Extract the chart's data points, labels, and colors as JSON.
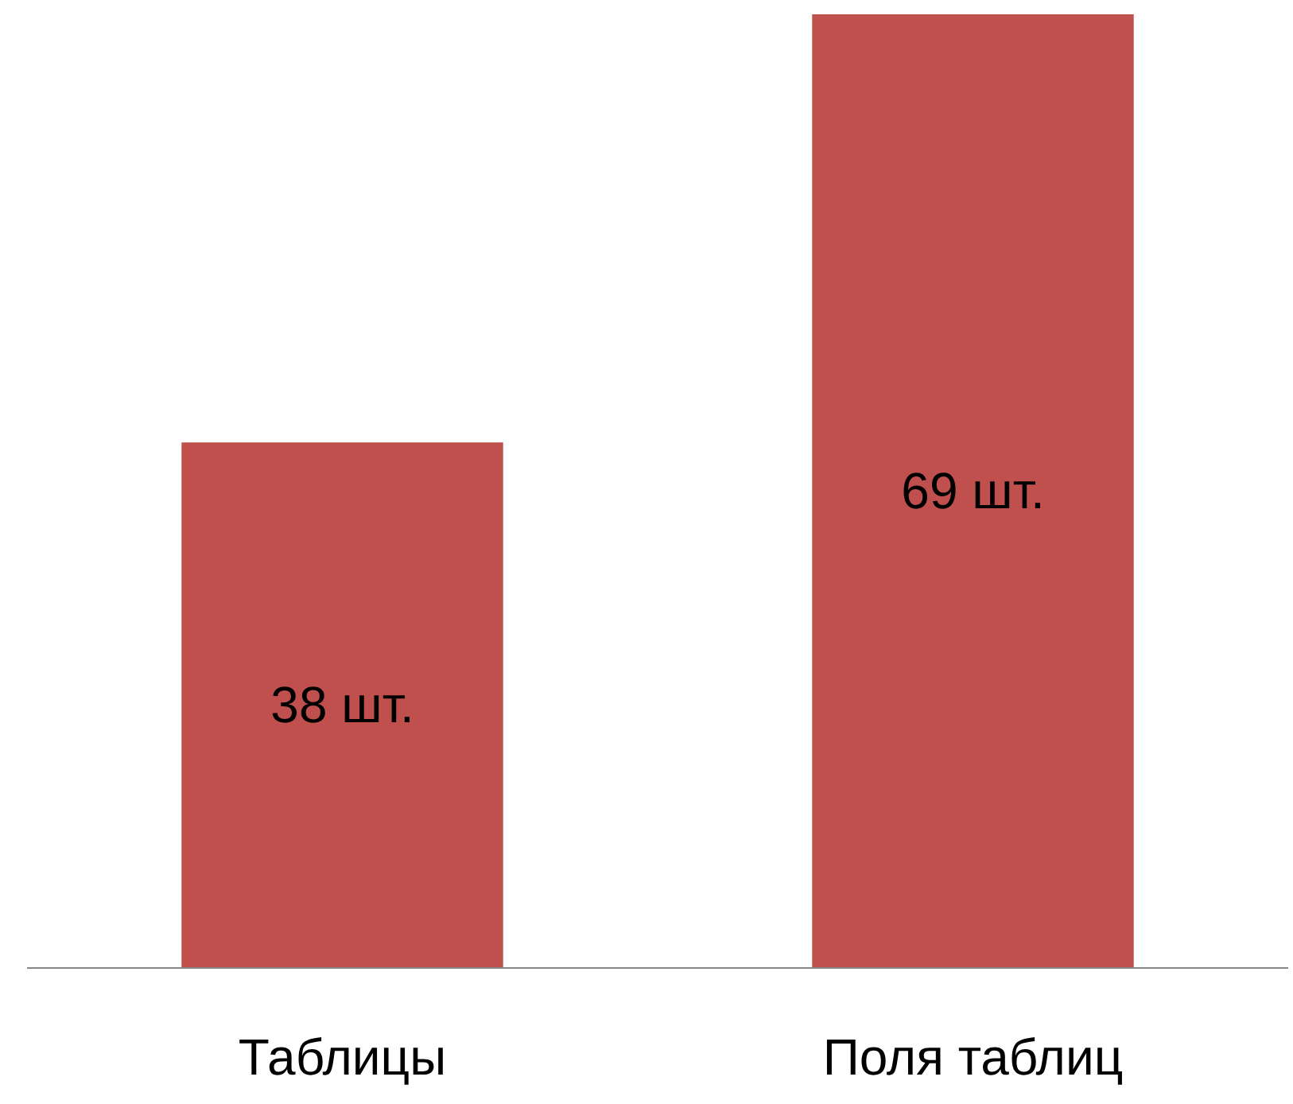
{
  "chart_data": {
    "type": "bar",
    "categories": [
      "Таблицы",
      "Поля таблиц"
    ],
    "values": [
      38,
      69
    ],
    "value_labels": [
      "38 шт.",
      "69 шт."
    ],
    "color": "#c0504d",
    "legend": false,
    "tick_labels": "x"
  }
}
